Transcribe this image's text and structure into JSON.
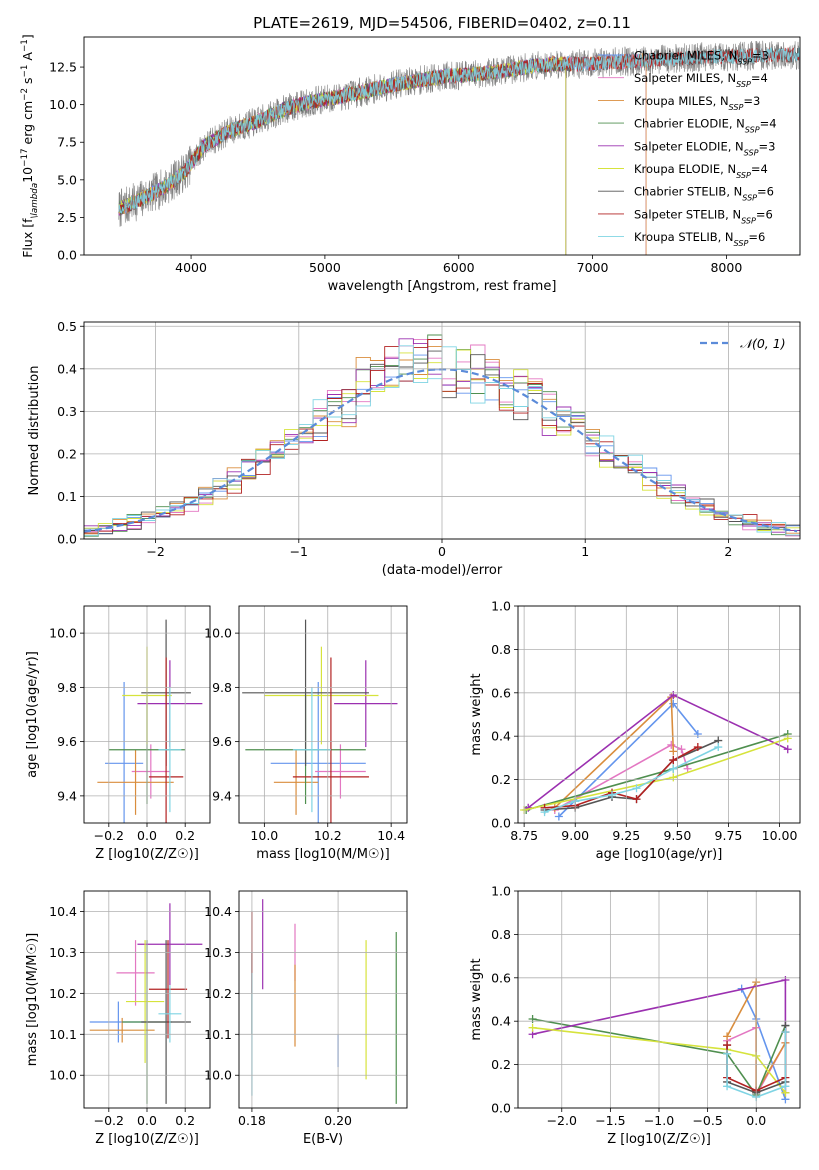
{
  "figure": {
    "title": "PLATE=2619, MJD=54506, FIBERID=0402, z=0.11"
  },
  "colors": {
    "Chabrier MILES": "#6495ed",
    "Salpeter MILES": "#e377c2",
    "Kroupa MILES": "#d98d3d",
    "Chabrier ELODIE": "#4f8f4f",
    "Salpeter ELODIE": "#9b30b0",
    "Kroupa ELODIE": "#d6e33c",
    "Chabrier STELIB": "#555555",
    "Salpeter STELIB": "#b22222",
    "Kroupa STELIB": "#7fd4e3",
    "gaussian": "#5b8bd9",
    "grid": "#b0b0b0"
  },
  "chart_data": [
    {
      "id": "spectrum",
      "type": "line",
      "xlabel": "wavelength [Angstrom, rest frame]",
      "ylabel": "Flux [f$_\\lambda$10$^{-17}$ erg cm$^{-2}$ s$^{-1}$ A$^{-1}$]",
      "xlim": [
        3200,
        8550
      ],
      "ylim": [
        0,
        14.5
      ],
      "xticks": [
        "4000",
        "5000",
        "6000",
        "7000",
        "8000"
      ],
      "yticks": [
        "0.0",
        "2.5",
        "5.0",
        "7.5",
        "10.0",
        "12.5"
      ],
      "grid": false,
      "legend_position": "upper right",
      "continuum": {
        "x": [
          3450,
          3600,
          3800,
          3950,
          4100,
          4300,
          4500,
          4700,
          4900,
          5100,
          5300,
          5500,
          5700,
          5900,
          6100,
          6300,
          6500,
          6700,
          6900,
          7100,
          7300,
          7500,
          7700,
          7900,
          8100,
          8300,
          8500
        ],
        "y": [
          3.0,
          3.6,
          4.5,
          5.5,
          7.3,
          8.3,
          8.9,
          9.7,
          10.2,
          10.5,
          10.9,
          11.3,
          11.6,
          11.9,
          12.0,
          12.2,
          12.5,
          12.7,
          12.7,
          12.8,
          12.9,
          13.0,
          13.1,
          13.2,
          13.2,
          13.3,
          13.3
        ]
      },
      "series": [
        {
          "name": "Chabrier MILES, N$_{SSP}$=3",
          "xmax": 7400
        },
        {
          "name": "Salpeter MILES, N$_{SSP}$=4",
          "xmax": 7400
        },
        {
          "name": "Kroupa MILES, N$_{SSP}$=3",
          "xmax": 7400
        },
        {
          "name": "Chabrier ELODIE, N$_{SSP}$=4",
          "xmax": 6800
        },
        {
          "name": "Salpeter ELODIE, N$_{SSP}$=3",
          "xmax": 6800
        },
        {
          "name": "Kroupa ELODIE, N$_{SSP}$=4",
          "xmax": 6800
        },
        {
          "name": "Chabrier STELIB, N$_{SSP}$=6",
          "xmax": 8550
        },
        {
          "name": "Salpeter STELIB, N$_{SSP}$=6",
          "xmax": 8550
        },
        {
          "name": "Kroupa STELIB, N$_{SSP}$=6",
          "xmax": 8550
        }
      ],
      "legend": [
        "Chabrier MILES, N$_{SSP}$=3",
        "Salpeter MILES, N$_{SSP}$=4",
        "Kroupa MILES, N$_{SSP}$=3",
        "Chabrier ELODIE, N$_{SSP}$=4",
        "Salpeter ELODIE, N$_{SSP}$=3",
        "Kroupa ELODIE, N$_{SSP}$=4",
        "Chabrier STELIB, N$_{SSP}$=6",
        "Salpeter STELIB, N$_{SSP}$=6",
        "Kroupa STELIB, N$_{SSP}$=6"
      ]
    },
    {
      "id": "residuals",
      "type": "histogram",
      "xlabel": "(data-model)/error",
      "ylabel": "Normed distribution",
      "xlim": [
        -2.5,
        2.5
      ],
      "ylim": [
        0,
        0.51
      ],
      "xticks": [
        "−2",
        "−1",
        "0",
        "1",
        "2"
      ],
      "yticks": [
        "0.0",
        "0.1",
        "0.2",
        "0.3",
        "0.4",
        "0.5"
      ],
      "grid": true,
      "legend_position": "upper right",
      "bin_width": 0.1,
      "gaussian": {
        "name": "$\\mathcal{N}(0,1)$",
        "mean": 0,
        "sigma": 1
      },
      "legend": [
        "N(0,1)"
      ]
    },
    {
      "id": "age-vs-Z",
      "type": "errorbar",
      "xlabel": "Z [log10(Z/Z☉)]",
      "ylabel": "age  [log10(age/yr)]",
      "xlim": [
        -0.33,
        0.33
      ],
      "ylim": [
        9.3,
        10.1
      ],
      "xticks": [
        "−0.2",
        "0.0",
        "0.2"
      ],
      "yticks": [
        "9.4",
        "9.6",
        "9.8",
        "10.0"
      ],
      "grid": true,
      "points": [
        {
          "model": "Chabrier MILES",
          "x": -0.12,
          "xerr": 0.1,
          "y": 9.52,
          "yerr": 0.3
        },
        {
          "model": "Salpeter MILES",
          "x": 0.02,
          "xerr": 0.1,
          "y": 9.49,
          "yerr": 0.1
        },
        {
          "model": "Kroupa MILES",
          "x": -0.06,
          "xerr": 0.2,
          "y": 9.45,
          "yerr": 0.12
        },
        {
          "model": "Chabrier ELODIE",
          "x": 0.0,
          "xerr": 0.2,
          "y": 9.57,
          "yerr": 0.2
        },
        {
          "model": "Salpeter ELODIE",
          "x": 0.12,
          "xerr": 0.17,
          "y": 9.74,
          "yerr": 0.16
        },
        {
          "model": "Kroupa ELODIE",
          "x": 0.0,
          "xerr": 0.13,
          "y": 9.77,
          "yerr": 0.18
        },
        {
          "model": "Chabrier STELIB",
          "x": 0.1,
          "xerr": 0.13,
          "y": 9.78,
          "yerr": 0.27
        },
        {
          "model": "Salpeter STELIB",
          "x": 0.1,
          "xerr": 0.09,
          "y": 9.47,
          "yerr": 0.44
        },
        {
          "model": "Kroupa STELIB",
          "x": 0.12,
          "xerr": 0.06,
          "y": 9.57,
          "yerr": 0.23
        }
      ]
    },
    {
      "id": "age-vs-mass",
      "type": "errorbar",
      "xlabel": "mass [log10(M/M☉)]",
      "ylabel": "",
      "xlim": [
        9.92,
        10.45
      ],
      "ylim": [
        9.3,
        10.1
      ],
      "xticks": [
        "10.0",
        "10.2",
        "10.4"
      ],
      "yticks": [
        "9.4",
        "9.6",
        "9.8",
        "10.0"
      ],
      "grid": true,
      "points": [
        {
          "model": "Chabrier MILES",
          "x": 10.17,
          "xerr": 0.15,
          "y": 9.52,
          "yerr": 0.3
        },
        {
          "model": "Salpeter MILES",
          "x": 10.24,
          "xerr": 0.08,
          "y": 9.49,
          "yerr": 0.1
        },
        {
          "model": "Kroupa MILES",
          "x": 10.1,
          "xerr": 0.07,
          "y": 9.45,
          "yerr": 0.12
        },
        {
          "model": "Chabrier ELODIE",
          "x": 10.13,
          "xerr": 0.19,
          "y": 9.57,
          "yerr": 0.2
        },
        {
          "model": "Salpeter ELODIE",
          "x": 10.32,
          "xerr": 0.1,
          "y": 9.74,
          "yerr": 0.16
        },
        {
          "model": "Kroupa ELODIE",
          "x": 10.18,
          "xerr": 0.18,
          "y": 9.77,
          "yerr": 0.18
        },
        {
          "model": "Chabrier STELIB",
          "x": 10.13,
          "xerr": 0.2,
          "y": 9.78,
          "yerr": 0.27
        },
        {
          "model": "Salpeter STELIB",
          "x": 10.21,
          "xerr": 0.12,
          "y": 9.47,
          "yerr": 0.44
        },
        {
          "model": "Kroupa STELIB",
          "x": 10.15,
          "xerr": 0.06,
          "y": 9.57,
          "yerr": 0.23
        }
      ]
    },
    {
      "id": "weight-vs-age",
      "type": "line",
      "xlabel": "age  [log10(age/yr)]",
      "ylabel": "mass weight",
      "xlim": [
        8.72,
        10.1
      ],
      "ylim": [
        0,
        1
      ],
      "xticks": [
        "8.75",
        "9.00",
        "9.25",
        "9.50",
        "9.75",
        "10.00"
      ],
      "yticks": [
        "0.0",
        "0.2",
        "0.4",
        "0.6",
        "0.8",
        "1.0"
      ],
      "grid": true,
      "series": [
        {
          "model": "Chabrier MILES",
          "x": [
            8.92,
            9.48,
            9.6
          ],
          "y": [
            0.03,
            0.55,
            0.41
          ]
        },
        {
          "model": "Salpeter MILES",
          "x": [
            8.9,
            9.47,
            9.52,
            9.55
          ],
          "y": [
            0.06,
            0.36,
            0.34,
            0.25
          ]
        },
        {
          "model": "Kroupa MILES",
          "x": [
            8.9,
            9.47,
            9.48
          ],
          "y": [
            0.07,
            0.58,
            0.33
          ]
        },
        {
          "model": "Chabrier ELODIE",
          "x": [
            8.76,
            9.48,
            10.04
          ],
          "y": [
            0.06,
            0.25,
            0.41
          ]
        },
        {
          "model": "Salpeter ELODIE",
          "x": [
            8.77,
            9.48,
            10.04
          ],
          "y": [
            0.07,
            0.59,
            0.34
          ]
        },
        {
          "model": "Kroupa ELODIE",
          "x": [
            8.75,
            9.48,
            10.04
          ],
          "y": [
            0.06,
            0.21,
            0.39
          ]
        },
        {
          "model": "Chabrier STELIB",
          "x": [
            8.85,
            9.0,
            9.18,
            9.3,
            9.48,
            9.7
          ],
          "y": [
            0.06,
            0.07,
            0.12,
            0.11,
            0.29,
            0.38
          ]
        },
        {
          "model": "Salpeter STELIB",
          "x": [
            8.85,
            9.0,
            9.18,
            9.3,
            9.48,
            9.6
          ],
          "y": [
            0.07,
            0.08,
            0.14,
            0.11,
            0.29,
            0.35
          ]
        },
        {
          "model": "Kroupa STELIB",
          "x": [
            8.85,
            9.0,
            9.18,
            9.3,
            9.48,
            9.7
          ],
          "y": [
            0.05,
            0.1,
            0.13,
            0.16,
            0.25,
            0.35
          ]
        }
      ]
    },
    {
      "id": "mass-vs-Z",
      "type": "errorbar",
      "xlabel": "Z [log10(Z/Z☉)]",
      "ylabel": "mass [log10(M/M☉)]",
      "xlim": [
        -0.33,
        0.33
      ],
      "ylim": [
        9.92,
        10.45
      ],
      "xticks": [
        "−0.2",
        "0.0",
        "0.2"
      ],
      "yticks": [
        "10.0",
        "10.1",
        "10.2",
        "10.3",
        "10.4"
      ],
      "grid": true,
      "points": [
        {
          "model": "Chabrier MILES",
          "x": -0.15,
          "xerr": 0.15,
          "y": 10.13,
          "yerr": 0.05
        },
        {
          "model": "Salpeter MILES",
          "x": -0.06,
          "xerr": 0.1,
          "y": 10.25,
          "yerr": 0.08
        },
        {
          "model": "Kroupa MILES",
          "x": -0.13,
          "xerr": 0.17,
          "y": 10.11,
          "yerr": 0.03
        },
        {
          "model": "Chabrier ELODIE",
          "x": 0.0,
          "xerr": 0.13,
          "y": 10.13,
          "yerr": 0.2
        },
        {
          "model": "Salpeter ELODIE",
          "x": 0.12,
          "xerr": 0.17,
          "y": 10.32,
          "yerr": 0.1
        },
        {
          "model": "Kroupa ELODIE",
          "x": -0.01,
          "xerr": 0.1,
          "y": 10.18,
          "yerr": 0.15
        },
        {
          "model": "Chabrier STELIB",
          "x": 0.1,
          "xerr": 0.13,
          "y": 10.13,
          "yerr": 0.2
        },
        {
          "model": "Salpeter STELIB",
          "x": 0.11,
          "xerr": 0.1,
          "y": 10.21,
          "yerr": 0.12
        },
        {
          "model": "Kroupa STELIB",
          "x": 0.12,
          "xerr": 0.06,
          "y": 10.15,
          "yerr": 0.07
        }
      ]
    },
    {
      "id": "mass-vs-ebv",
      "type": "errorbar",
      "xlabel": "E(B-V)",
      "ylabel": "",
      "xlim": [
        0.177,
        0.216
      ],
      "ylim": [
        9.92,
        10.45
      ],
      "xticks": [
        "0.18",
        "0.20"
      ],
      "yticks": [
        "10.0",
        "10.1",
        "10.2",
        "10.3",
        "10.4"
      ],
      "grid": true,
      "points": [
        {
          "model": "Chabrier MILES",
          "x": 0.2,
          "xerr": 0,
          "y": 10.06,
          "yerr": 0.04
        },
        {
          "model": "Salpeter MILES",
          "x": 0.19,
          "xerr": 0,
          "y": 10.3,
          "yerr": 0.07
        },
        {
          "model": "Kroupa MILES",
          "x": 0.19,
          "xerr": 0,
          "y": 10.17,
          "yerr": 0.1
        },
        {
          "model": "Chabrier ELODIE",
          "x": 0.2135,
          "xerr": 0,
          "y": 10.14,
          "yerr": 0.21
        },
        {
          "model": "Salpeter ELODIE",
          "x": 0.1825,
          "xerr": 0,
          "y": 10.32,
          "yerr": 0.11
        },
        {
          "model": "Kroupa ELODIE",
          "x": 0.2065,
          "xerr": 0,
          "y": 10.16,
          "yerr": 0.17
        },
        {
          "model": "Chabrier STELIB",
          "x": 0.18,
          "xerr": 0,
          "y": 10.2,
          "yerr": 0.1
        },
        {
          "model": "Salpeter STELIB",
          "x": 0.18,
          "xerr": 0,
          "y": 10.3,
          "yerr": 0.1
        },
        {
          "model": "Kroupa STELIB",
          "x": 0.18,
          "xerr": 0,
          "y": 10.1,
          "yerr": 0.15
        }
      ]
    },
    {
      "id": "weight-vs-Z",
      "type": "line",
      "xlabel": "Z [log10(Z/Z☉)]",
      "ylabel": "mass weight",
      "xlim": [
        -2.45,
        0.45
      ],
      "ylim": [
        0,
        1
      ],
      "xticks": [
        "−2.0",
        "−1.5",
        "−1.0",
        "−0.5",
        "0.0"
      ],
      "yticks": [
        "0.0",
        "0.2",
        "0.4",
        "0.6",
        "0.8",
        "1.0"
      ],
      "grid": true,
      "series": [
        {
          "model": "Chabrier MILES",
          "x": [
            -0.15,
            0.0,
            0.3
          ],
          "y": [
            0.55,
            0.41,
            0.04
          ]
        },
        {
          "model": "Salpeter MILES",
          "x": [
            -0.3,
            0.0,
            0.0,
            0.3
          ],
          "y": [
            0.31,
            0.37,
            0.06,
            0.3
          ]
        },
        {
          "model": "Kroupa MILES",
          "x": [
            -0.3,
            0.0,
            0.0,
            0.3
          ],
          "y": [
            0.33,
            0.58,
            0.07,
            0.3
          ]
        },
        {
          "model": "Chabrier ELODIE",
          "x": [
            -2.3,
            -0.3,
            0.0,
            0.3
          ],
          "y": [
            0.41,
            0.25,
            0.06,
            0.38
          ]
        },
        {
          "model": "Salpeter ELODIE",
          "x": [
            -2.3,
            0.3,
            0.3
          ],
          "y": [
            0.34,
            0.59,
            0.07
          ]
        },
        {
          "model": "Kroupa ELODIE",
          "x": [
            -2.3,
            -0.3,
            0.0,
            0.3
          ],
          "y": [
            0.37,
            0.27,
            0.24,
            0.07
          ]
        },
        {
          "model": "Chabrier STELIB",
          "x": [
            -0.3,
            -0.3,
            0.0,
            0.3,
            0.3
          ],
          "y": [
            0.29,
            0.12,
            0.07,
            0.12,
            0.38
          ]
        },
        {
          "model": "Salpeter STELIB",
          "x": [
            -0.3,
            -0.3,
            0.0,
            0.3,
            0.3
          ],
          "y": [
            0.29,
            0.14,
            0.08,
            0.14,
            0.35
          ]
        },
        {
          "model": "Kroupa STELIB",
          "x": [
            -0.3,
            -0.3,
            0.0,
            0.3,
            0.3
          ],
          "y": [
            0.25,
            0.1,
            0.05,
            0.1,
            0.35
          ]
        }
      ]
    }
  ]
}
